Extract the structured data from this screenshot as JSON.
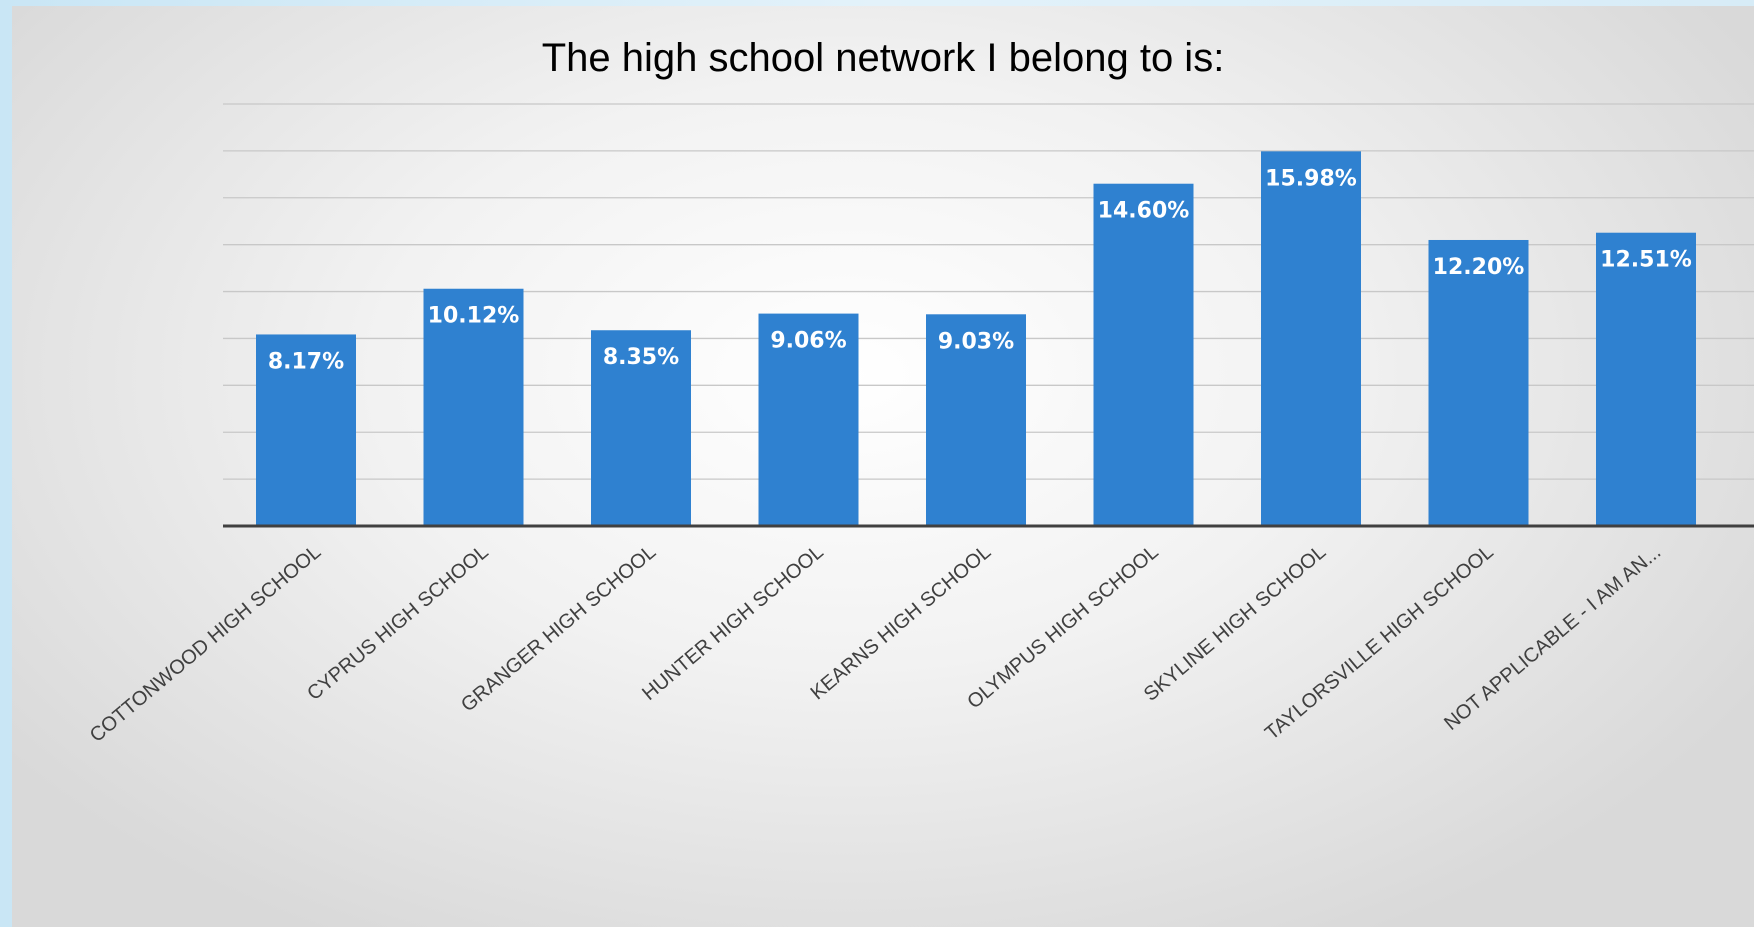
{
  "chart_data": {
    "type": "bar",
    "title": "The high school network I belong to is:",
    "categories": [
      "COTTONWOOD HIGH SCHOOL",
      "CYPRUS HIGH SCHOOL",
      "GRANGER HIGH SCHOOL",
      "HUNTER HIGH SCHOOL",
      "KEARNS HIGH SCHOOL",
      "OLYMPUS HIGH SCHOOL",
      "SKYLINE HIGH SCHOOL",
      "TAYLORSVILLE HIGH SCHOOL",
      "NOT APPLICABLE - I AM AN..."
    ],
    "values": [
      8.17,
      10.12,
      8.35,
      9.06,
      9.03,
      14.6,
      15.98,
      12.2,
      12.51
    ],
    "data_labels": [
      "8.17%",
      "10.12%",
      "8.35%",
      "9.06%",
      "9.03%",
      "14.60%",
      "15.98%",
      "12.20%",
      "12.51%"
    ],
    "ylim": [
      0,
      18
    ],
    "grid": true,
    "y_tick_labels_shown": false,
    "xlabel": "",
    "ylabel": "",
    "bar_color": "#2f81d0",
    "axis_color": "#404040",
    "grid_color": "#c8c8c8"
  }
}
